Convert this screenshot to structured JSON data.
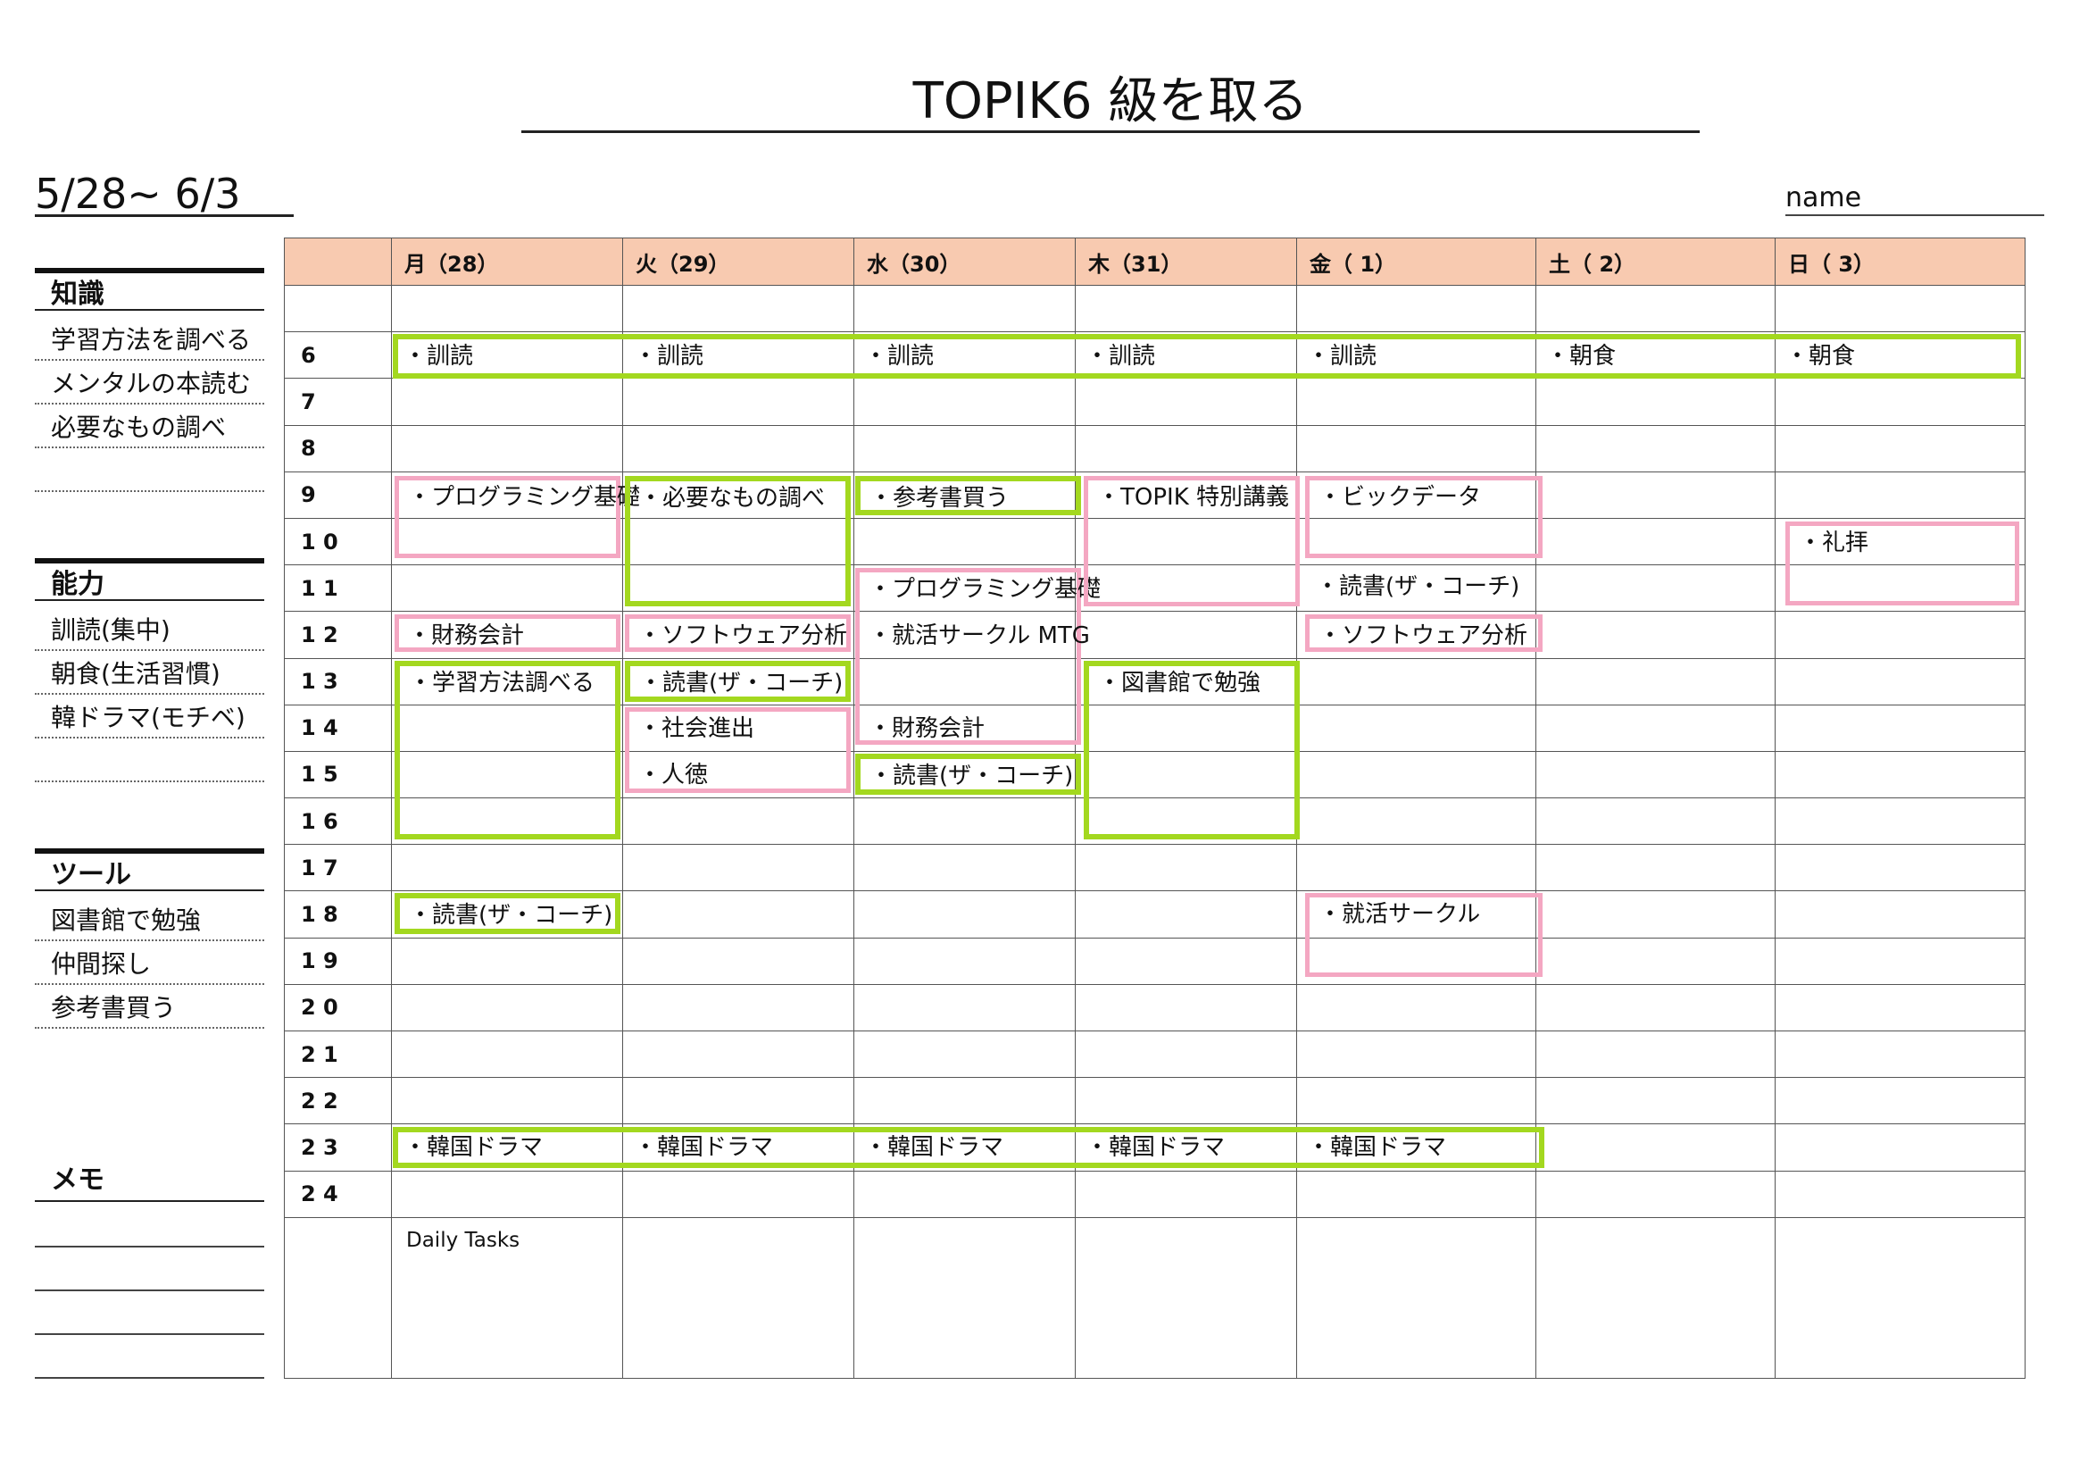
{
  "header": {
    "title": "TOPIK6 級を取る",
    "date_range": "5/28~ 6/3",
    "name_label": "name"
  },
  "sidebar": {
    "sections": [
      {
        "heading": "知識",
        "items": [
          "学習方法を調べる",
          "メンタルの本読む",
          "必要なもの調べ",
          ""
        ]
      },
      {
        "heading": "能力",
        "items": [
          "訓読(集中)",
          "朝食(生活習慣)",
          "韓ドラマ(モチベ)",
          ""
        ]
      },
      {
        "heading": "ツール",
        "items": [
          "図書館で勉強",
          "仲間探し",
          "参考書買う"
        ]
      }
    ],
    "memo_heading": "メモ"
  },
  "calendar": {
    "days": [
      "月（28）",
      "火（29）",
      "水（30）",
      "木（31）",
      "金（ 1）",
      "土（ 2）",
      "日（ 3）"
    ],
    "hours": [
      "",
      "6",
      "7",
      "8",
      "9",
      "1 0",
      "1 1",
      "1 2",
      "1 3",
      "1 4",
      "1 5",
      "1 6",
      "1 7",
      "1 8",
      "1 9",
      "2 0",
      "2 1",
      "2 2",
      "2 3",
      "2 4"
    ],
    "daily_tasks_label": "Daily Tasks"
  },
  "events": {
    "row6": [
      "・訓読",
      "・訓読",
      "・訓読",
      "・訓読",
      "・訓読",
      "・朝食",
      "・朝食"
    ],
    "row23": [
      "・韓国ドラマ",
      "・韓国ドラマ",
      "・韓国ドラマ",
      "・韓国ドラマ",
      "・韓国ドラマ"
    ],
    "mon_programming": "・プログラミング基礎",
    "mon_finance": "・財務会計",
    "mon_study_method": "・学習方法調べる",
    "mon_reading": "・読書(ザ・コーチ)",
    "tue_needed": "・必要なもの調べ",
    "tue_software": "・ソフトウェア分析",
    "tue_reading": "・読書(ザ・コーチ)",
    "tue_society": "・社会進出",
    "tue_virtue": "・人徳",
    "wed_books": "・参考書買う",
    "wed_programming": "・プログラミング基礎",
    "wed_job_mtg": "・就活サークル MTG",
    "wed_finance": "・財務会計",
    "wed_reading": "・読書(ザ・コーチ)",
    "thu_topik": "・TOPIK 特別講義",
    "thu_library": "・図書館で勉強",
    "fri_bigdata": "・ビックデータ",
    "fri_reading": "・読書(ザ・コーチ)",
    "fri_software": "・ソフトウェア分析",
    "fri_job": "・就活サークル",
    "sun_worship": "・礼拝"
  },
  "colors": {
    "header_fill": "#f8cab0",
    "green_border": "#a3d81f",
    "pink_border": "#f4a7c2"
  }
}
